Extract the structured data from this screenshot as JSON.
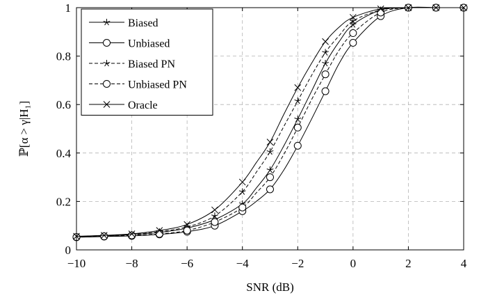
{
  "chart_data": {
    "type": "line",
    "xlabel": "SNR (dB)",
    "ylabel": "ℙ[α > γ|H₁]",
    "xlim": [
      -10,
      4
    ],
    "ylim": [
      0,
      1
    ],
    "xticks": [
      "−10",
      "−8",
      "−6",
      "−4",
      "−2",
      "0",
      "2",
      "4"
    ],
    "yticks": [
      "0",
      "0.2",
      "0.4",
      "0.6",
      "0.8",
      "1"
    ],
    "xtick_values": [
      -10,
      -8,
      -6,
      -4,
      -2,
      0,
      2,
      4
    ],
    "ytick_values": [
      0,
      0.2,
      0.4,
      0.6,
      0.8,
      1
    ],
    "grid": true,
    "legend_position": "top-left",
    "x": [
      -10,
      -9,
      -8,
      -7,
      -6,
      -5,
      -4,
      -3.5,
      -3,
      -2.5,
      -2,
      -1.5,
      -1,
      -0.5,
      0,
      1,
      2,
      3,
      4
    ],
    "series": [
      {
        "name": "Biased",
        "marker": "star",
        "dash": "solid",
        "values": [
          0.055,
          0.058,
          0.063,
          0.072,
          0.09,
          0.125,
          0.19,
          0.255,
          0.33,
          0.43,
          0.54,
          0.655,
          0.77,
          0.86,
          0.93,
          0.99,
          1.0,
          1.0,
          1.0
        ]
      },
      {
        "name": "Unbiased",
        "marker": "circle",
        "dash": "solid",
        "values": [
          0.052,
          0.055,
          0.058,
          0.064,
          0.075,
          0.1,
          0.16,
          0.2,
          0.25,
          0.33,
          0.43,
          0.54,
          0.655,
          0.77,
          0.855,
          0.965,
          1.0,
          1.0,
          1.0
        ]
      },
      {
        "name": "Biased PN",
        "marker": "star",
        "dash": "dashed",
        "values": [
          0.055,
          0.059,
          0.064,
          0.075,
          0.095,
          0.14,
          0.24,
          0.32,
          0.405,
          0.51,
          0.615,
          0.72,
          0.815,
          0.885,
          0.945,
          0.99,
          1.0,
          1.0,
          1.0
        ]
      },
      {
        "name": "Unbiased PN",
        "marker": "circle",
        "dash": "dashed",
        "values": [
          0.053,
          0.056,
          0.06,
          0.066,
          0.08,
          0.115,
          0.175,
          0.235,
          0.3,
          0.395,
          0.505,
          0.62,
          0.725,
          0.825,
          0.895,
          0.98,
          1.0,
          1.0,
          1.0
        ]
      },
      {
        "name": "Oracle",
        "marker": "x",
        "dash": "solid",
        "values": [
          0.056,
          0.06,
          0.066,
          0.08,
          0.105,
          0.165,
          0.28,
          0.36,
          0.445,
          0.56,
          0.67,
          0.77,
          0.86,
          0.92,
          0.96,
          0.995,
          1.0,
          1.0,
          1.0
        ]
      }
    ]
  }
}
